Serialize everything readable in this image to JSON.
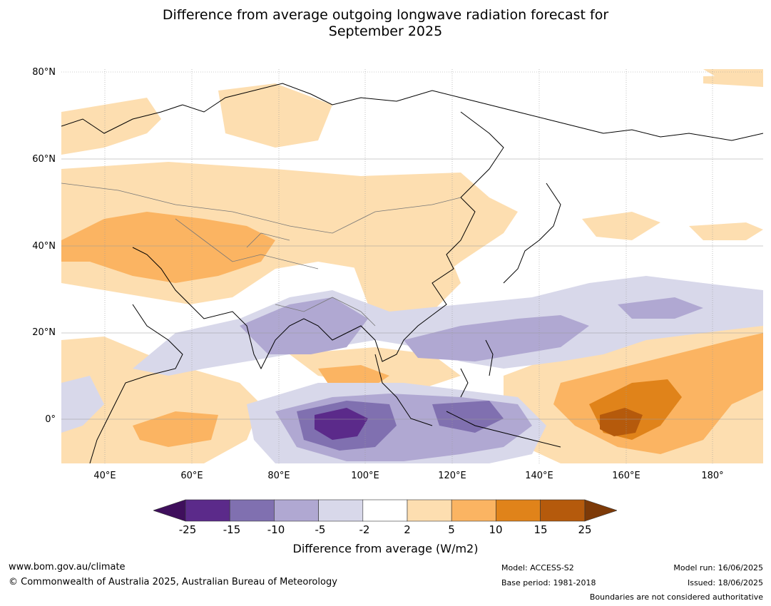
{
  "title": [
    "Difference from average outgoing longwave radiation forecast for",
    "September 2025"
  ],
  "map": {
    "lat_labels": [
      "80°N",
      "60°N",
      "40°N",
      "20°N",
      "0°"
    ],
    "lon_labels": [
      "40°E",
      "60°E",
      "80°E",
      "100°E",
      "120°E",
      "140°E",
      "160°E",
      "180°"
    ]
  },
  "colorbar": {
    "ticks": [
      "-25",
      "-15",
      "-10",
      "-5",
      "-2",
      "2",
      "5",
      "10",
      "15",
      "25"
    ],
    "colors": [
      "#3f0f5c",
      "#5b2a8a",
      "#8070b0",
      "#b0a8d2",
      "#d8d8ea",
      "#ffffff",
      "#fddeb0",
      "#fbb462",
      "#e0831a",
      "#b55a0c",
      "#7d3a08"
    ],
    "label": "Difference from average (W/m2)"
  },
  "footer": {
    "url": "www.bom.gov.au/climate",
    "copyright": "© Commonwealth of Australia 2025, Australian Bureau of Meteorology",
    "model": "Model: ACCESS-S2",
    "base_period": "Base period: 1981-2018",
    "model_run": "Model run: 16/06/2025",
    "issued": "Issued: 18/06/2025",
    "disclaimer": "Boundaries are not considered authoritative"
  }
}
